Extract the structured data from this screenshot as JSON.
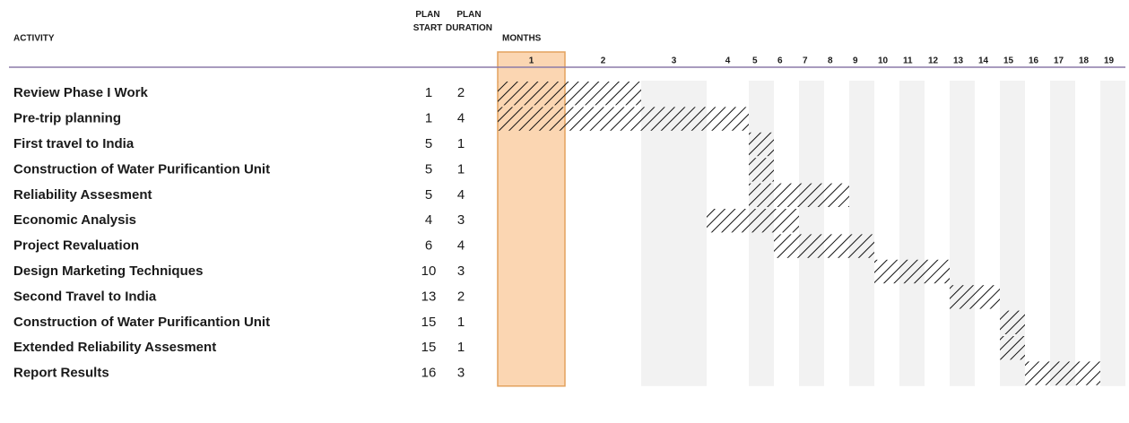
{
  "chart_data": {
    "type": "gantt",
    "headers": {
      "activity": "ACTIVITY",
      "start": "PLAN START",
      "duration": "PLAN DURATION",
      "months": "MONTHS"
    },
    "months": [
      1,
      2,
      3,
      4,
      5,
      6,
      7,
      8,
      9,
      10,
      11,
      12,
      13,
      14,
      15,
      16,
      17,
      18,
      19
    ],
    "highlight_month": 1,
    "tasks": [
      {
        "name": "Review Phase I Work",
        "start": 1,
        "duration": 2
      },
      {
        "name": "Pre-trip planning",
        "start": 1,
        "duration": 4
      },
      {
        "name": "First travel to India",
        "start": 5,
        "duration": 1
      },
      {
        "name": "Construction of Water Purificantion Unit",
        "start": 5,
        "duration": 1
      },
      {
        "name": "Reliability Assesment",
        "start": 5,
        "duration": 4
      },
      {
        "name": "Economic Analysis",
        "start": 4,
        "duration": 3
      },
      {
        "name": "Project Revaluation",
        "start": 6,
        "duration": 4
      },
      {
        "name": "Design Marketing Techniques",
        "start": 10,
        "duration": 3
      },
      {
        "name": "Second Travel to India",
        "start": 13,
        "duration": 2
      },
      {
        "name": "Construction of Water Purificantion Unit",
        "start": 15,
        "duration": 1
      },
      {
        "name": "Extended Reliability Assesment",
        "start": 15,
        "duration": 1
      },
      {
        "name": "Report Results",
        "start": 16,
        "duration": 3
      }
    ]
  }
}
